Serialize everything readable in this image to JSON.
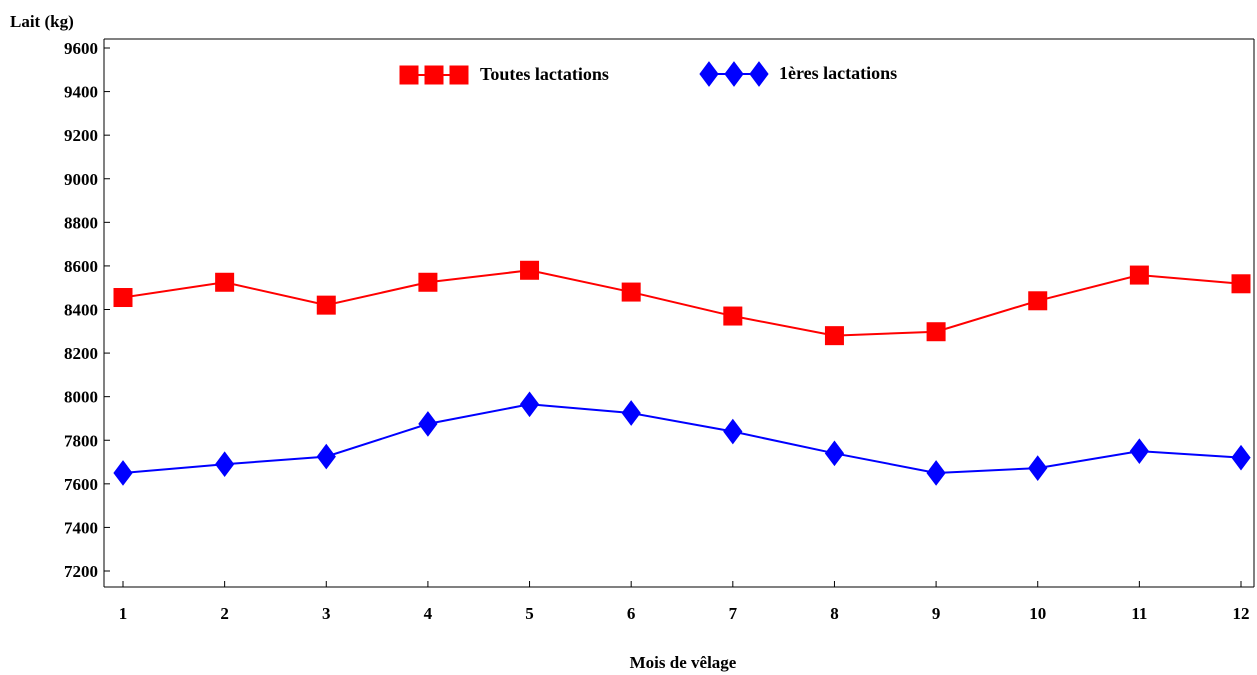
{
  "chart_data": {
    "type": "line",
    "ylabel": "Lait (kg)",
    "xlabel": "Mois de vêlage",
    "x": [
      1,
      2,
      3,
      4,
      5,
      6,
      7,
      8,
      9,
      10,
      11,
      12
    ],
    "ylim": [
      7200,
      9600
    ],
    "yticks": [
      7200,
      7400,
      7600,
      7800,
      8000,
      8200,
      8400,
      8600,
      8800,
      9000,
      9200,
      9400,
      9600
    ],
    "grid": false,
    "legend": "top-center",
    "series": [
      {
        "name": "Toutes lactations",
        "color": "#ff0000",
        "marker": "square",
        "values": [
          8455,
          8525,
          8420,
          8525,
          8580,
          8480,
          8370,
          8280,
          8298,
          8440,
          8558,
          8518
        ]
      },
      {
        "name": "1ères lactations",
        "color": "#0000ff",
        "marker": "diamond",
        "values": [
          7650,
          7690,
          7725,
          7875,
          7965,
          7925,
          7840,
          7740,
          7650,
          7672,
          7750,
          7720
        ]
      }
    ]
  }
}
